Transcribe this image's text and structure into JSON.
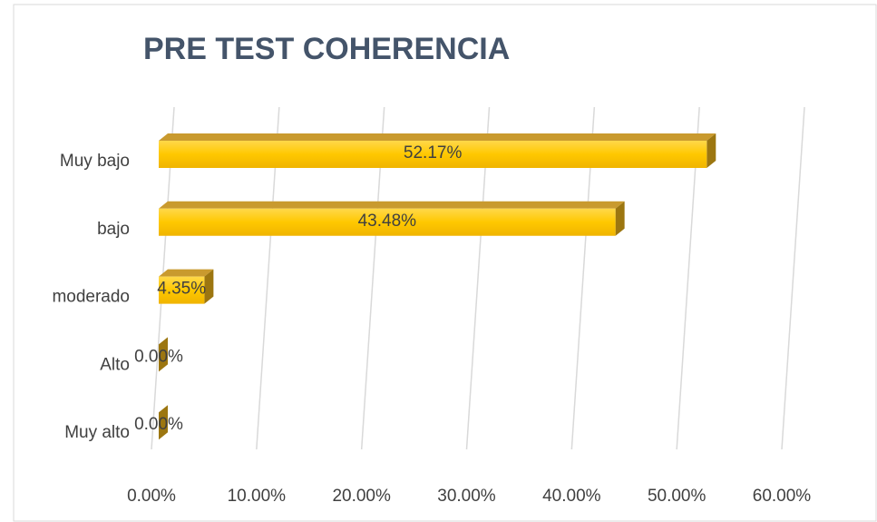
{
  "chart_data": {
    "type": "bar",
    "orientation": "horizontal",
    "title": "PRE TEST COHERENCIA",
    "categories": [
      "Muy bajo",
      "bajo",
      "moderado",
      "Alto",
      "Muy alto"
    ],
    "values": [
      52.17,
      43.48,
      4.35,
      0,
      0
    ],
    "value_labels": [
      "52.17%",
      "43.48%",
      "4.35%",
      "0.00%",
      "0.00%"
    ],
    "color": "#ffc000",
    "xlim": [
      0,
      60
    ],
    "xticks": [
      {
        "value": 0,
        "label": "0.00%"
      },
      {
        "value": 10,
        "label": "10.00%"
      },
      {
        "value": 20,
        "label": "20.00%"
      },
      {
        "value": 30,
        "label": "30.00%"
      },
      {
        "value": 40,
        "label": "40.00%"
      },
      {
        "value": 50,
        "label": "50.00%"
      },
      {
        "value": 60,
        "label": "60.00%"
      }
    ],
    "grid": true
  }
}
